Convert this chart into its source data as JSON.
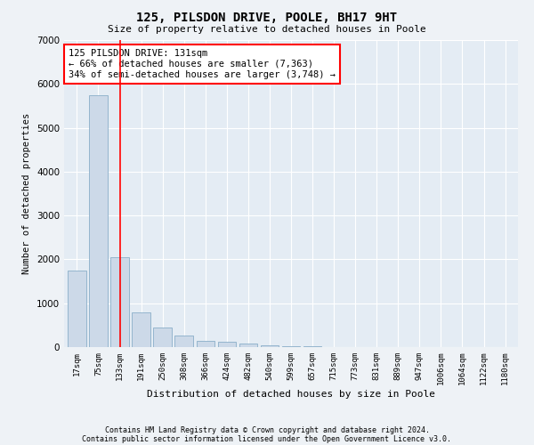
{
  "title1": "125, PILSDON DRIVE, POOLE, BH17 9HT",
  "title2": "Size of property relative to detached houses in Poole",
  "xlabel": "Distribution of detached houses by size in Poole",
  "ylabel": "Number of detached properties",
  "bar_labels": [
    "17sqm",
    "75sqm",
    "133sqm",
    "191sqm",
    "250sqm",
    "308sqm",
    "366sqm",
    "424sqm",
    "482sqm",
    "540sqm",
    "599sqm",
    "657sqm",
    "715sqm",
    "773sqm",
    "831sqm",
    "889sqm",
    "947sqm",
    "1006sqm",
    "1064sqm",
    "1122sqm",
    "1180sqm"
  ],
  "bar_values": [
    1750,
    5750,
    2050,
    800,
    450,
    260,
    150,
    120,
    80,
    50,
    30,
    15,
    8,
    4,
    3,
    2,
    1,
    1,
    1,
    0,
    0
  ],
  "bar_color": "#ccd9e8",
  "bar_edge_color": "#8aaec8",
  "red_line_index": 2,
  "annotation_line1": "125 PILSDON DRIVE: 131sqm",
  "annotation_line2": "← 66% of detached houses are smaller (7,363)",
  "annotation_line3": "34% of semi-detached houses are larger (3,748) →",
  "annotation_box_color": "white",
  "annotation_box_edge": "red",
  "ylim": [
    0,
    7000
  ],
  "yticks": [
    0,
    1000,
    2000,
    3000,
    4000,
    5000,
    6000,
    7000
  ],
  "footnote1": "Contains HM Land Registry data © Crown copyright and database right 2024.",
  "footnote2": "Contains public sector information licensed under the Open Government Licence v3.0.",
  "bg_color": "#eef2f6",
  "plot_bg_color": "#e4ecf4"
}
